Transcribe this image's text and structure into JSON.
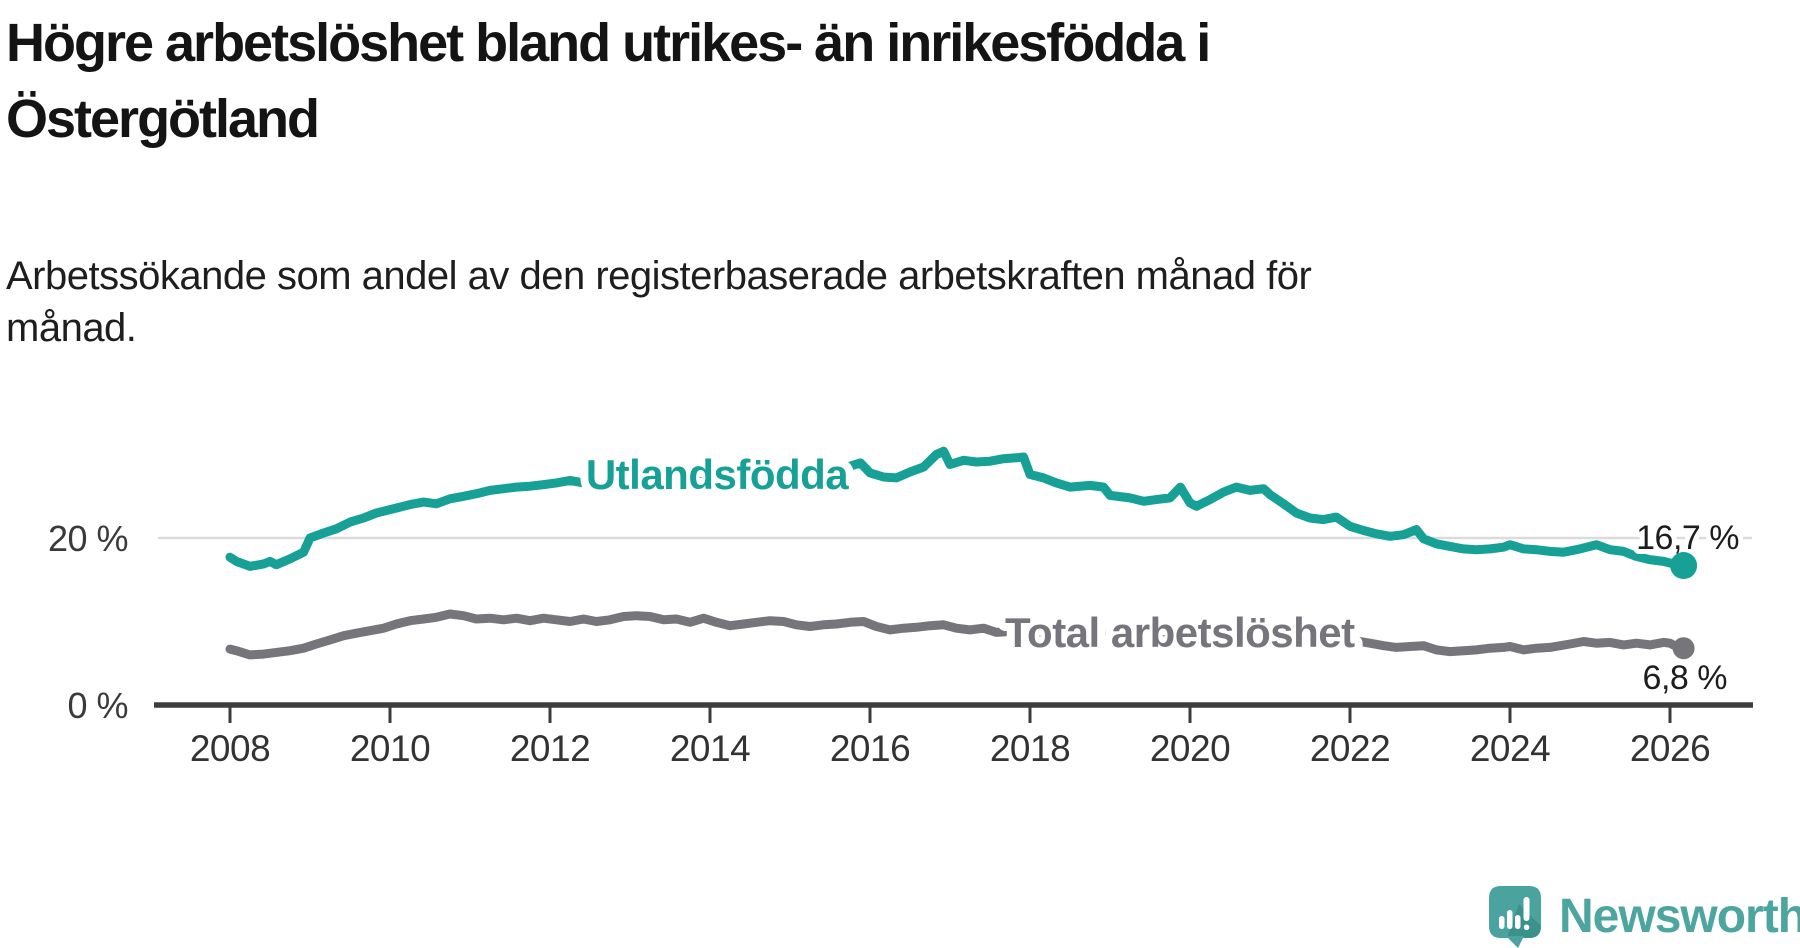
{
  "header": {
    "title_line1": "Högre arbetslöshet bland utrikes- än inrikesfödda i",
    "title_line2": "Östergötland",
    "subtitle_line1": "Arbetssökande som andel av den registerbaserade arbetskraften månad för",
    "subtitle_line2": "månad."
  },
  "footer": {
    "brand": "Newsworthy"
  },
  "colors": {
    "accent_teal": "#16A096",
    "series_gray": "#75757B",
    "logo_teal": "#4DA5A0",
    "axis_dark": "#3C3C3C",
    "grid_gray": "#DBDBDB"
  },
  "chart_data": {
    "type": "line",
    "title": "Högre arbetslöshet bland utrikes- än inrikesfödda i Östergötland",
    "subtitle": "Arbetssökande som andel av den registerbaserade arbetskraften månad för månad.",
    "xlabel": "",
    "ylabel": "",
    "unit": "%",
    "grid": "horizontal-only",
    "legend_position": "inline-labels",
    "x_axis": {
      "origin": 2008,
      "range": [
        2008,
        2026.5
      ],
      "ticks": [
        2008,
        2010,
        2012,
        2014,
        2016,
        2018,
        2020,
        2022,
        2024,
        2026
      ]
    },
    "y_axis": {
      "range": [
        0,
        32
      ],
      "ticks": [
        {
          "value": 0,
          "label": "0 %"
        },
        {
          "value": 20,
          "label": "20 %"
        }
      ]
    },
    "series": [
      {
        "id": "utlandsfodda",
        "name": "Utlandsfödda",
        "color": "#16A096",
        "end_label": "16,7 %",
        "end_value": 16.7,
        "points": [
          [
            2008.0,
            17.7
          ],
          [
            2008.08,
            17.2
          ],
          [
            2008.25,
            16.6
          ],
          [
            2008.42,
            16.9
          ],
          [
            2008.5,
            17.2
          ],
          [
            2008.58,
            16.8
          ],
          [
            2008.75,
            17.5
          ],
          [
            2008.92,
            18.3
          ],
          [
            2009.0,
            20.0
          ],
          [
            2009.17,
            20.6
          ],
          [
            2009.33,
            21.1
          ],
          [
            2009.5,
            21.9
          ],
          [
            2009.67,
            22.4
          ],
          [
            2009.83,
            23.0
          ],
          [
            2010.0,
            23.4
          ],
          [
            2010.25,
            24.0
          ],
          [
            2010.42,
            24.3
          ],
          [
            2010.58,
            24.1
          ],
          [
            2010.75,
            24.7
          ],
          [
            2010.92,
            25.0
          ],
          [
            2011.08,
            25.3
          ],
          [
            2011.25,
            25.7
          ],
          [
            2011.42,
            25.9
          ],
          [
            2011.58,
            26.1
          ],
          [
            2011.75,
            26.2
          ],
          [
            2011.92,
            26.4
          ],
          [
            2012.08,
            26.6
          ],
          [
            2012.25,
            26.9
          ],
          [
            2012.42,
            26.6
          ],
          [
            2012.58,
            26.8
          ],
          [
            2012.75,
            27.0
          ],
          [
            2012.92,
            27.2
          ],
          [
            2013.08,
            27.3
          ],
          [
            2013.25,
            27.1
          ],
          [
            2013.5,
            27.3
          ],
          [
            2013.75,
            27.6
          ],
          [
            2014.0,
            27.8
          ],
          [
            2014.25,
            27.5
          ],
          [
            2014.5,
            27.8
          ],
          [
            2014.75,
            28.0
          ],
          [
            2015.0,
            28.2
          ],
          [
            2015.25,
            28.0
          ],
          [
            2015.5,
            28.3
          ],
          [
            2015.75,
            28.6
          ],
          [
            2015.88,
            29.0
          ],
          [
            2016.0,
            27.8
          ],
          [
            2016.17,
            27.3
          ],
          [
            2016.33,
            27.2
          ],
          [
            2016.5,
            27.9
          ],
          [
            2016.67,
            28.5
          ],
          [
            2016.83,
            30.0
          ],
          [
            2016.92,
            30.4
          ],
          [
            2017.0,
            28.8
          ],
          [
            2017.17,
            29.3
          ],
          [
            2017.33,
            29.1
          ],
          [
            2017.5,
            29.2
          ],
          [
            2017.67,
            29.5
          ],
          [
            2017.83,
            29.6
          ],
          [
            2017.92,
            29.7
          ],
          [
            2018.0,
            27.6
          ],
          [
            2018.17,
            27.2
          ],
          [
            2018.33,
            26.6
          ],
          [
            2018.5,
            26.1
          ],
          [
            2018.75,
            26.3
          ],
          [
            2018.92,
            26.1
          ],
          [
            2019.0,
            25.1
          ],
          [
            2019.25,
            24.8
          ],
          [
            2019.42,
            24.4
          ],
          [
            2019.58,
            24.6
          ],
          [
            2019.75,
            24.8
          ],
          [
            2019.88,
            26.1
          ],
          [
            2020.0,
            24.2
          ],
          [
            2020.08,
            23.8
          ],
          [
            2020.25,
            24.6
          ],
          [
            2020.42,
            25.5
          ],
          [
            2020.58,
            26.1
          ],
          [
            2020.75,
            25.7
          ],
          [
            2020.92,
            25.9
          ],
          [
            2021.0,
            25.2
          ],
          [
            2021.17,
            24.1
          ],
          [
            2021.33,
            23.0
          ],
          [
            2021.5,
            22.4
          ],
          [
            2021.67,
            22.2
          ],
          [
            2021.83,
            22.5
          ],
          [
            2022.0,
            21.4
          ],
          [
            2022.17,
            20.9
          ],
          [
            2022.33,
            20.5
          ],
          [
            2022.5,
            20.2
          ],
          [
            2022.67,
            20.4
          ],
          [
            2022.83,
            21.0
          ],
          [
            2022.92,
            19.9
          ],
          [
            2023.08,
            19.3
          ],
          [
            2023.25,
            19.0
          ],
          [
            2023.42,
            18.7
          ],
          [
            2023.58,
            18.6
          ],
          [
            2023.75,
            18.7
          ],
          [
            2023.92,
            18.9
          ],
          [
            2024.0,
            19.2
          ],
          [
            2024.17,
            18.7
          ],
          [
            2024.33,
            18.6
          ],
          [
            2024.5,
            18.4
          ],
          [
            2024.67,
            18.3
          ],
          [
            2024.83,
            18.6
          ],
          [
            2025.0,
            19.0
          ],
          [
            2025.08,
            19.2
          ],
          [
            2025.25,
            18.6
          ],
          [
            2025.42,
            18.4
          ],
          [
            2025.58,
            17.8
          ],
          [
            2025.75,
            17.4
          ],
          [
            2025.92,
            17.2
          ],
          [
            2026.0,
            17.0
          ],
          [
            2026.17,
            16.7
          ]
        ]
      },
      {
        "id": "total",
        "name": "Total arbetslöshet",
        "color": "#75757B",
        "end_label": "6,8 %",
        "end_value": 6.8,
        "points": [
          [
            2008.0,
            6.7
          ],
          [
            2008.08,
            6.5
          ],
          [
            2008.25,
            6.0
          ],
          [
            2008.42,
            6.1
          ],
          [
            2008.58,
            6.3
          ],
          [
            2008.75,
            6.5
          ],
          [
            2008.92,
            6.8
          ],
          [
            2009.08,
            7.3
          ],
          [
            2009.25,
            7.8
          ],
          [
            2009.42,
            8.3
          ],
          [
            2009.58,
            8.6
          ],
          [
            2009.75,
            8.9
          ],
          [
            2009.92,
            9.2
          ],
          [
            2010.08,
            9.7
          ],
          [
            2010.25,
            10.1
          ],
          [
            2010.42,
            10.3
          ],
          [
            2010.58,
            10.5
          ],
          [
            2010.75,
            10.9
          ],
          [
            2010.92,
            10.7
          ],
          [
            2011.08,
            10.3
          ],
          [
            2011.25,
            10.4
          ],
          [
            2011.42,
            10.2
          ],
          [
            2011.58,
            10.4
          ],
          [
            2011.75,
            10.1
          ],
          [
            2011.92,
            10.4
          ],
          [
            2012.08,
            10.2
          ],
          [
            2012.25,
            10.0
          ],
          [
            2012.42,
            10.3
          ],
          [
            2012.58,
            10.0
          ],
          [
            2012.75,
            10.2
          ],
          [
            2012.92,
            10.6
          ],
          [
            2013.08,
            10.7
          ],
          [
            2013.25,
            10.6
          ],
          [
            2013.42,
            10.2
          ],
          [
            2013.58,
            10.3
          ],
          [
            2013.75,
            9.9
          ],
          [
            2013.92,
            10.4
          ],
          [
            2014.08,
            9.9
          ],
          [
            2014.25,
            9.5
          ],
          [
            2014.42,
            9.7
          ],
          [
            2014.58,
            9.9
          ],
          [
            2014.75,
            10.1
          ],
          [
            2014.92,
            10.0
          ],
          [
            2015.08,
            9.6
          ],
          [
            2015.25,
            9.4
          ],
          [
            2015.42,
            9.6
          ],
          [
            2015.58,
            9.7
          ],
          [
            2015.75,
            9.9
          ],
          [
            2015.92,
            10.0
          ],
          [
            2016.08,
            9.4
          ],
          [
            2016.25,
            9.0
          ],
          [
            2016.42,
            9.2
          ],
          [
            2016.58,
            9.3
          ],
          [
            2016.75,
            9.5
          ],
          [
            2016.92,
            9.6
          ],
          [
            2017.08,
            9.2
          ],
          [
            2017.25,
            9.0
          ],
          [
            2017.42,
            9.2
          ],
          [
            2017.58,
            8.7
          ],
          [
            2017.75,
            8.8
          ],
          [
            2018.0,
            8.9
          ],
          [
            2018.25,
            8.6
          ],
          [
            2018.5,
            8.5
          ],
          [
            2018.75,
            8.7
          ],
          [
            2019.0,
            8.5
          ],
          [
            2019.25,
            8.3
          ],
          [
            2019.5,
            8.4
          ],
          [
            2019.75,
            8.6
          ],
          [
            2020.0,
            8.8
          ],
          [
            2020.25,
            9.5
          ],
          [
            2020.5,
            9.9
          ],
          [
            2020.75,
            9.6
          ],
          [
            2021.0,
            9.3
          ],
          [
            2021.25,
            8.9
          ],
          [
            2021.5,
            8.5
          ],
          [
            2021.75,
            8.2
          ],
          [
            2022.0,
            7.8
          ],
          [
            2022.25,
            7.4
          ],
          [
            2022.42,
            7.1
          ],
          [
            2022.58,
            6.9
          ],
          [
            2022.75,
            7.0
          ],
          [
            2022.92,
            7.1
          ],
          [
            2023.08,
            6.6
          ],
          [
            2023.25,
            6.4
          ],
          [
            2023.42,
            6.5
          ],
          [
            2023.58,
            6.6
          ],
          [
            2023.75,
            6.8
          ],
          [
            2023.92,
            6.9
          ],
          [
            2024.0,
            7.0
          ],
          [
            2024.17,
            6.6
          ],
          [
            2024.33,
            6.8
          ],
          [
            2024.5,
            6.9
          ],
          [
            2024.75,
            7.3
          ],
          [
            2024.92,
            7.6
          ],
          [
            2025.08,
            7.4
          ],
          [
            2025.25,
            7.5
          ],
          [
            2025.42,
            7.2
          ],
          [
            2025.58,
            7.4
          ],
          [
            2025.75,
            7.2
          ],
          [
            2025.92,
            7.5
          ],
          [
            2026.0,
            7.4
          ],
          [
            2026.08,
            7.0
          ],
          [
            2026.17,
            6.8
          ]
        ]
      }
    ]
  }
}
